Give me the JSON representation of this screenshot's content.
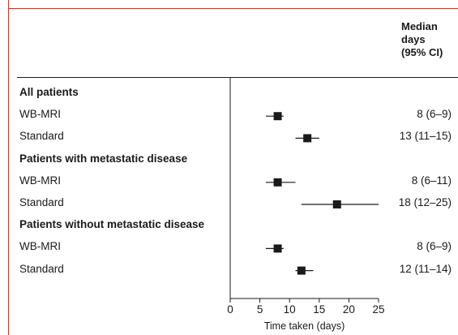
{
  "header": {
    "line1": "Median",
    "line2": "days",
    "line3": "(95% CI)"
  },
  "rows": [
    {
      "label": "All patients",
      "kind": "group"
    },
    {
      "label": "WB-MRI",
      "kind": "item",
      "value": "8 (6–9)"
    },
    {
      "label": "Standard",
      "kind": "item",
      "value": "13 (11–15)"
    },
    {
      "label": "Patients with metastatic disease",
      "kind": "group"
    },
    {
      "label": "WB-MRI",
      "kind": "item",
      "value": "8 (6–11)"
    },
    {
      "label": "Standard",
      "kind": "item",
      "value": "18 (12–25)"
    },
    {
      "label": "Patients without metastatic disease",
      "kind": "group"
    },
    {
      "label": "WB-MRI",
      "kind": "item",
      "value": "8 (6–9)"
    },
    {
      "label": "Standard",
      "kind": "item",
      "value": "12 (11–14)"
    }
  ],
  "chart_data": {
    "type": "forest",
    "xlabel": "Time taken (days)",
    "xlim": [
      0,
      25
    ],
    "ticks": [
      0,
      5,
      10,
      15,
      20,
      25
    ],
    "tick_labels": [
      "0",
      "5",
      "10",
      "15",
      "20",
      "25"
    ],
    "points": [
      {
        "group": "All patients",
        "name": "WB-MRI",
        "median": 8,
        "ci": [
          6,
          9
        ]
      },
      {
        "group": "All patients",
        "name": "Standard",
        "median": 13,
        "ci": [
          11,
          15
        ]
      },
      {
        "group": "Patients with metastatic disease",
        "name": "WB-MRI",
        "median": 8,
        "ci": [
          6,
          11
        ]
      },
      {
        "group": "Patients with metastatic disease",
        "name": "Standard",
        "median": 18,
        "ci": [
          12,
          25
        ]
      },
      {
        "group": "Patients without metastatic disease",
        "name": "WB-MRI",
        "median": 8,
        "ci": [
          6,
          9
        ]
      },
      {
        "group": "Patients without metastatic disease",
        "name": "Standard",
        "median": 12,
        "ci": [
          11,
          14
        ]
      }
    ],
    "colors": {
      "frame": "#c0392b",
      "marks": "#1a1a1a"
    }
  }
}
